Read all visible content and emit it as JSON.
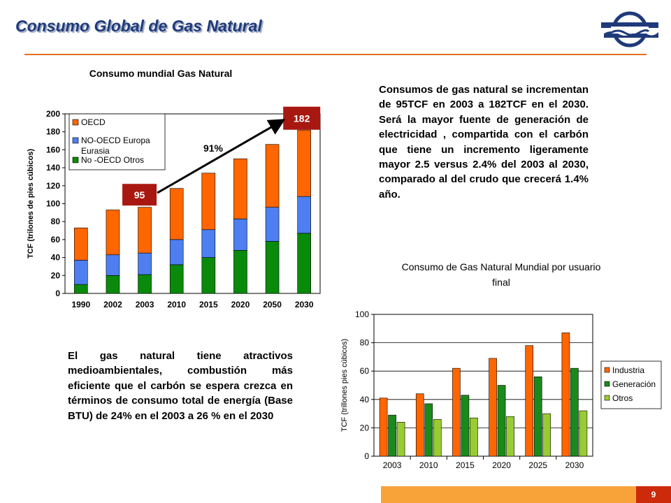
{
  "slide": {
    "title": "Consumo Global de Gas Natural",
    "page_number": "9",
    "paragraph_right": "Consumos de gas natural se incrementan de 95TCF en 2003 a 182TCF en el 2030. Será la mayor fuente de generación de electricidad , compartida con el carbón que tiene un incremento ligeramente mayor 2.5 versus 2.4% del 2003 al 2030, comparado al del crudo que crecerá 1.4% año.",
    "paragraph_left": "El gas natural tiene atractivos medioambientales, combustión más eficiente que el carbón se espera crezca en términos de consumo total de energía (Base BTU) de 24% en el 2003 a 26 % en el 2030"
  },
  "colors": {
    "accent": "#e07020",
    "title_text": "#1f3a7a",
    "footer_bar": "#f7a33a",
    "page_box": "#cc2a0a",
    "annotation_box": "#a81810",
    "orange_series": "#ff6600",
    "blue_series": "#4d7ff0",
    "green_series": "#0a8a0a",
    "dark_green_series": "#1a8a1a",
    "light_green_series": "#99cc33"
  },
  "chart_data": [
    {
      "type": "bar",
      "stacked": true,
      "title": "Consumo mundial Gas Natural",
      "xlabel": "",
      "ylabel": "TCF (trilones de pies cúbicos)",
      "ylim": [
        0,
        200
      ],
      "yticks": [
        0,
        20,
        40,
        60,
        80,
        100,
        120,
        140,
        160,
        180,
        200
      ],
      "grid": false,
      "legend": "top-left",
      "categories": [
        "1990",
        "2002",
        "2003",
        "2010",
        "2015",
        "2020",
        "2050",
        "2030"
      ],
      "series": [
        {
          "name": "No -OECD Otros",
          "color": "#0a8a0a",
          "values": [
            10,
            20,
            21,
            32,
            40,
            48,
            58,
            67
          ]
        },
        {
          "name": "NO-OECD Europa Eurasia",
          "color": "#4d7ff0",
          "values": [
            27,
            23,
            24,
            28,
            31,
            35,
            38,
            41
          ]
        },
        {
          "name": "OECD",
          "color": "#ff6600",
          "values": [
            36,
            50,
            51,
            57,
            63,
            67,
            70,
            74
          ]
        }
      ],
      "annotations": {
        "start_label": "95",
        "end_label": "182",
        "growth_label": "91%"
      }
    },
    {
      "type": "bar",
      "title": "Consumo de Gas Natural Mundial por usuario final",
      "xlabel": "",
      "ylabel": "TCF (trillones pies cúbicos)",
      "ylim": [
        0,
        100
      ],
      "yticks": [
        0,
        20,
        40,
        60,
        80,
        100
      ],
      "grid": true,
      "legend": "right",
      "categories": [
        "2003",
        "2010",
        "2015",
        "2020",
        "2025",
        "2030"
      ],
      "series": [
        {
          "name": "Industria",
          "color": "#ff6600",
          "values": [
            41,
            44,
            62,
            69,
            78,
            87
          ]
        },
        {
          "name": "Generación",
          "color": "#1a8a1a",
          "values": [
            29,
            37,
            43,
            50,
            56,
            62
          ]
        },
        {
          "name": "Otros",
          "color": "#99cc33",
          "values": [
            24,
            26,
            27,
            28,
            30,
            32
          ]
        }
      ]
    }
  ]
}
